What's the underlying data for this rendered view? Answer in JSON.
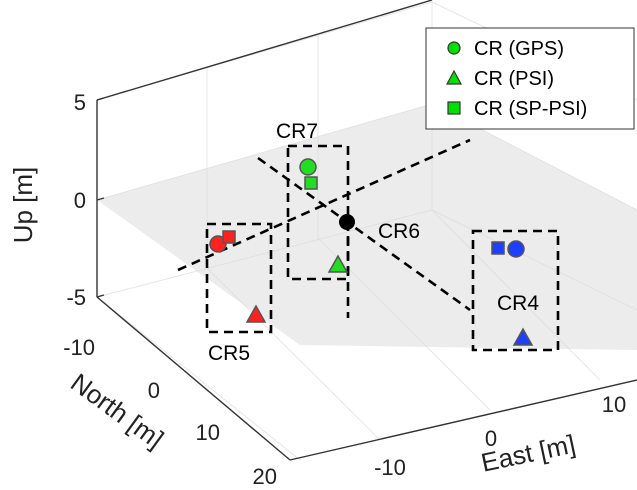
{
  "chart_data": {
    "type": "scatter3d",
    "axes": {
      "x": {
        "label": "East [m]",
        "ticks": [
          "-10",
          "0",
          "10"
        ]
      },
      "y": {
        "label": "North [m]",
        "ticks": [
          "-10",
          "0",
          "10",
          "20"
        ]
      },
      "z": {
        "label": "Up [m]",
        "ticks": [
          "5",
          "0",
          "-5"
        ]
      }
    },
    "legend": {
      "position": "top-right",
      "entries": [
        {
          "label": "CR (GPS)",
          "marker": "circle",
          "color": "#00e000"
        },
        {
          "label": "CR (PSI)",
          "marker": "triangle",
          "color": "#00e000"
        },
        {
          "label": "CR (SP-PSI)",
          "marker": "square",
          "color": "#00e000"
        }
      ]
    },
    "groups": [
      {
        "name": "CR4",
        "color": "#1f3fff",
        "gps": true,
        "psi": true,
        "sp_psi": true
      },
      {
        "name": "CR5",
        "color": "#ff2020",
        "gps": true,
        "psi": true,
        "sp_psi": true
      },
      {
        "name": "CR6",
        "color": "#000000",
        "gps": true,
        "psi": false,
        "sp_psi": false
      },
      {
        "name": "CR7",
        "color": "#22dd22",
        "gps": true,
        "psi": true,
        "sp_psi": true
      }
    ],
    "grid": true,
    "ground_plane": true
  }
}
